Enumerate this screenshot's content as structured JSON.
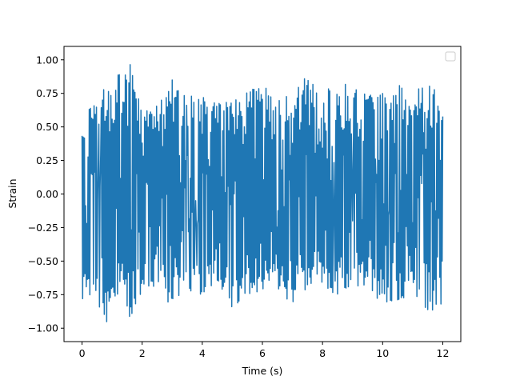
{
  "chart_data": {
    "type": "line",
    "title": "",
    "xlabel": "Time (s)",
    "ylabel": "Strain",
    "xlim": [
      -0.6,
      12.6
    ],
    "ylim": [
      -1.1,
      1.1
    ],
    "xticks": [
      0,
      2,
      4,
      6,
      8,
      10,
      12
    ],
    "xtick_labels": [
      "0",
      "2",
      "4",
      "6",
      "8",
      "10",
      "12"
    ],
    "yticks": [
      -1.0,
      -0.75,
      -0.5,
      -0.25,
      0.0,
      0.25,
      0.5,
      0.75,
      1.0
    ],
    "ytick_labels": [
      "−1.00",
      "−0.75",
      "−0.50",
      "−0.25",
      "0.00",
      "0.25",
      "0.50",
      "0.75",
      "1.00"
    ],
    "grid": false,
    "legend": {
      "placement": "top-right",
      "entries": []
    },
    "series": [
      {
        "color": "#1f77b4",
        "x_start": 0,
        "x_end": 12,
        "sample_count": 600,
        "envelope": {
          "x": [
            0,
            0.1,
            0.2,
            0.4,
            0.6,
            0.8,
            1.0,
            1.2,
            1.4,
            1.6,
            2.0,
            2.5,
            3.0,
            3.5,
            4.0,
            4.5,
            5.0,
            5.5,
            6.0,
            6.5,
            7.0,
            7.5,
            8.0,
            8.5,
            9.0,
            9.5,
            10.0,
            10.5,
            11.0,
            11.5,
            12.0
          ],
          "max": [
            0.44,
            0.55,
            0.64,
            0.74,
            0.72,
            0.82,
            0.74,
            0.89,
            0.9,
            1.0,
            0.68,
            0.67,
            0.86,
            0.75,
            0.76,
            0.68,
            0.7,
            0.76,
            0.82,
            0.71,
            0.75,
            0.9,
            0.78,
            0.79,
            0.85,
            0.72,
            0.84,
            0.82,
            0.73,
            0.9,
            0.68
          ],
          "min": [
            -0.93,
            -0.8,
            -0.75,
            -0.78,
            -0.9,
            -0.97,
            -0.83,
            -0.78,
            -0.75,
            -0.95,
            -0.72,
            -0.7,
            -0.85,
            -0.71,
            -0.77,
            -0.68,
            -0.86,
            -0.75,
            -0.72,
            -0.7,
            -0.83,
            -0.7,
            -0.7,
            -0.75,
            -0.72,
            -0.7,
            -0.84,
            -0.8,
            -0.74,
            -0.9,
            -0.82
          ]
        }
      }
    ]
  }
}
